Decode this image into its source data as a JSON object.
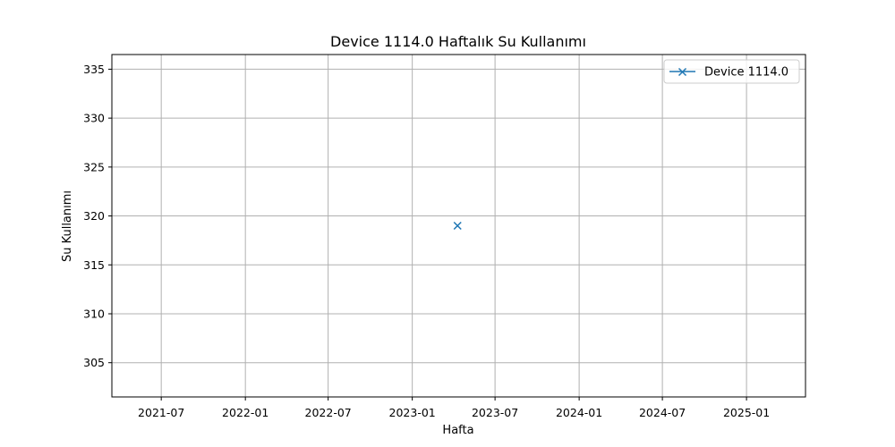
{
  "chart_data": {
    "type": "line",
    "title": "Device 1114.0 Haftalık Su Kullanımı",
    "xlabel": "Hafta",
    "ylabel": "Su Kullanımı",
    "xlim": [
      "2021-03-15",
      "2025-05-10"
    ],
    "ylim": [
      301.5,
      336.5
    ],
    "x_ticks": [
      "2021-07",
      "2022-01",
      "2022-07",
      "2023-01",
      "2023-07",
      "2024-01",
      "2024-07",
      "2025-01"
    ],
    "y_ticks": [
      305,
      310,
      315,
      320,
      325,
      330,
      335
    ],
    "grid": true,
    "legend": "top-right",
    "series": [
      {
        "name": "Device 1114.0",
        "marker": "x",
        "color": "#1f77b4",
        "points": [
          {
            "x": "2023-04-10",
            "y": 319
          }
        ]
      }
    ]
  }
}
